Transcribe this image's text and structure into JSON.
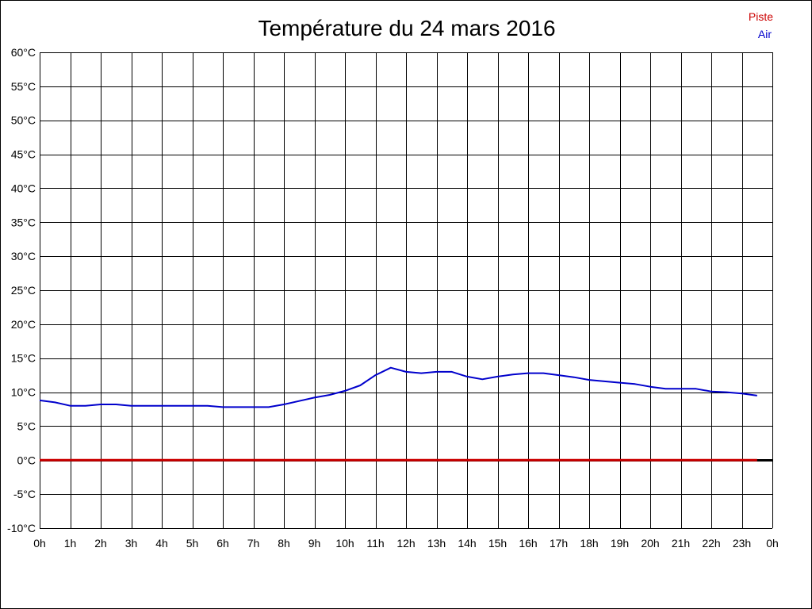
{
  "chart_data": {
    "type": "line",
    "title": "Température du 24 mars 2016",
    "xlabel": "",
    "ylabel": "",
    "x_tick_labels": [
      "0h",
      "1h",
      "2h",
      "3h",
      "4h",
      "5h",
      "6h",
      "7h",
      "8h",
      "9h",
      "10h",
      "11h",
      "12h",
      "13h",
      "14h",
      "15h",
      "16h",
      "17h",
      "18h",
      "19h",
      "20h",
      "21h",
      "22h",
      "23h",
      "0h"
    ],
    "y_tick_labels": [
      "60°C",
      "55°C",
      "50°C",
      "45°C",
      "40°C",
      "35°C",
      "30°C",
      "25°C",
      "20°C",
      "15°C",
      "10°C",
      "5°C",
      "0°C",
      "-5°C",
      "-10°C"
    ],
    "xlim": [
      0,
      24
    ],
    "ylim": [
      -10,
      60
    ],
    "grid": true,
    "legend_position": "top-right",
    "series": [
      {
        "name": "Piste",
        "color": "#cc0000",
        "x": [
          0,
          23.5
        ],
        "y": [
          0,
          0
        ]
      },
      {
        "name": "Air",
        "color": "#0000cc",
        "x": [
          0,
          0.5,
          1,
          1.5,
          2,
          2.5,
          3,
          3.5,
          4,
          4.5,
          5,
          5.5,
          6,
          6.5,
          7,
          7.5,
          8,
          8.5,
          9,
          9.5,
          10,
          10.5,
          11,
          11.5,
          12,
          12.5,
          13,
          13.5,
          14,
          14.5,
          15,
          15.5,
          16,
          16.5,
          17,
          17.5,
          18,
          18.5,
          19,
          19.5,
          20,
          20.5,
          21,
          21.5,
          22,
          22.5,
          23,
          23.5
        ],
        "y": [
          8.8,
          8.5,
          8.0,
          8.0,
          8.2,
          8.2,
          8.0,
          8.0,
          8.0,
          8.0,
          8.0,
          8.0,
          7.8,
          7.8,
          7.8,
          7.8,
          8.2,
          8.7,
          9.2,
          9.6,
          10.2,
          11.0,
          12.5,
          13.6,
          13.0,
          12.8,
          13.0,
          13.0,
          12.3,
          11.9,
          12.3,
          12.6,
          12.8,
          12.8,
          12.5,
          12.2,
          11.8,
          11.6,
          11.4,
          11.2,
          10.8,
          10.5,
          10.5,
          10.5,
          10.1,
          10.0,
          9.8,
          9.5
        ]
      }
    ]
  }
}
